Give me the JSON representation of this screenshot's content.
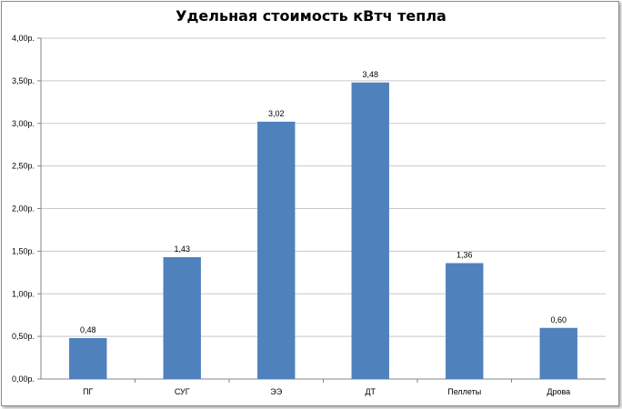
{
  "chart_data": {
    "type": "bar",
    "title": "Удельная стоимость кВтч тепла",
    "xlabel": "",
    "ylabel": "",
    "categories": [
      "ПГ",
      "СУГ",
      "ЭЭ",
      "ДТ",
      "Пеллеты",
      "Дрова"
    ],
    "values": [
      0.48,
      1.43,
      3.02,
      3.48,
      1.36,
      0.6
    ],
    "data_labels": [
      "0,48",
      "1,43",
      "3,02",
      "3,48",
      "1,36",
      "0,60"
    ],
    "ylim": [
      0,
      4.0
    ],
    "yticks": [
      0,
      0.5,
      1.0,
      1.5,
      2.0,
      2.5,
      3.0,
      3.5,
      4.0
    ],
    "ytick_labels": [
      "0,00р.",
      "0,50р.",
      "1,00р.",
      "1,50р.",
      "2,00р.",
      "2,50р.",
      "3,00р.",
      "3,50р.",
      "4,00р."
    ],
    "grid": true,
    "legend": "none",
    "bar_color": "#4f81bd",
    "grid_color": "#c8c8c8"
  }
}
